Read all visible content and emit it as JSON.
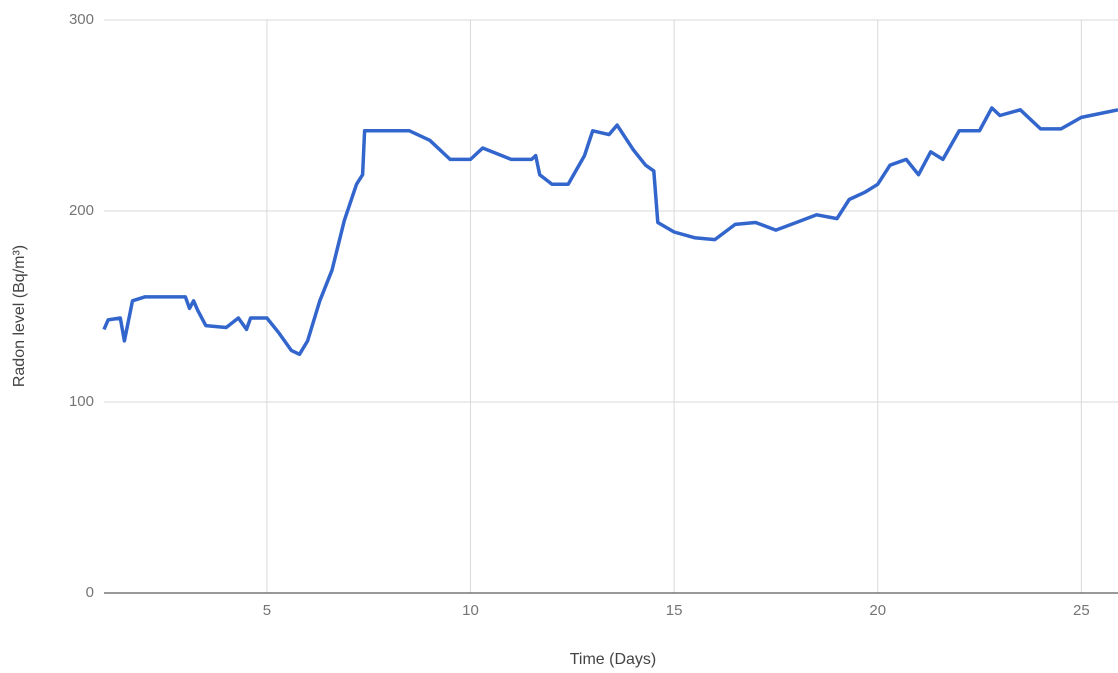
{
  "chart_data": {
    "type": "line",
    "x_label": "Time (Days)",
    "y_label": "Radon level (Bq/m³)",
    "xlim": [
      1,
      25.9
    ],
    "ylim": [
      0,
      300
    ],
    "xticks": [
      5,
      10,
      15,
      20,
      25
    ],
    "yticks": [
      0,
      100,
      200,
      300
    ],
    "grid": true,
    "series": [
      {
        "name": "Radon level",
        "color": "#3366cc",
        "x": [
          1.0,
          1.1,
          1.4,
          1.5,
          1.7,
          2.0,
          2.5,
          3.0,
          3.1,
          3.2,
          3.3,
          3.5,
          4.0,
          4.3,
          4.5,
          4.6,
          5.0,
          5.3,
          5.6,
          5.8,
          6.0,
          6.3,
          6.6,
          6.9,
          7.2,
          7.35,
          7.4,
          8.0,
          8.5,
          9.0,
          9.5,
          10.0,
          10.3,
          11.0,
          11.5,
          11.6,
          11.7,
          12.0,
          12.4,
          12.8,
          13.0,
          13.4,
          13.6,
          14.0,
          14.3,
          14.5,
          14.6,
          15.0,
          15.5,
          16.0,
          16.5,
          17.0,
          17.5,
          18.0,
          18.5,
          19.0,
          19.3,
          19.7,
          20.0,
          20.3,
          20.7,
          21.0,
          21.3,
          21.6,
          22.0,
          22.5,
          22.8,
          23.0,
          23.5,
          24.0,
          24.5,
          25.0,
          25.9
        ],
        "values": [
          138,
          143,
          144,
          132,
          153,
          155,
          155,
          155,
          149,
          153,
          148,
          140,
          139,
          144,
          138,
          144,
          144,
          136,
          127,
          125,
          132,
          153,
          169,
          195,
          214,
          219,
          242,
          242,
          242,
          237,
          227,
          227,
          233,
          227,
          227,
          229,
          219,
          214,
          214,
          229,
          242,
          240,
          245,
          232,
          224,
          221,
          194,
          189,
          186,
          185,
          193,
          194,
          190,
          194,
          198,
          196,
          206,
          210,
          214,
          224,
          227,
          219,
          231,
          227,
          242,
          242,
          254,
          250,
          253,
          243,
          243,
          249,
          253
        ]
      }
    ]
  }
}
